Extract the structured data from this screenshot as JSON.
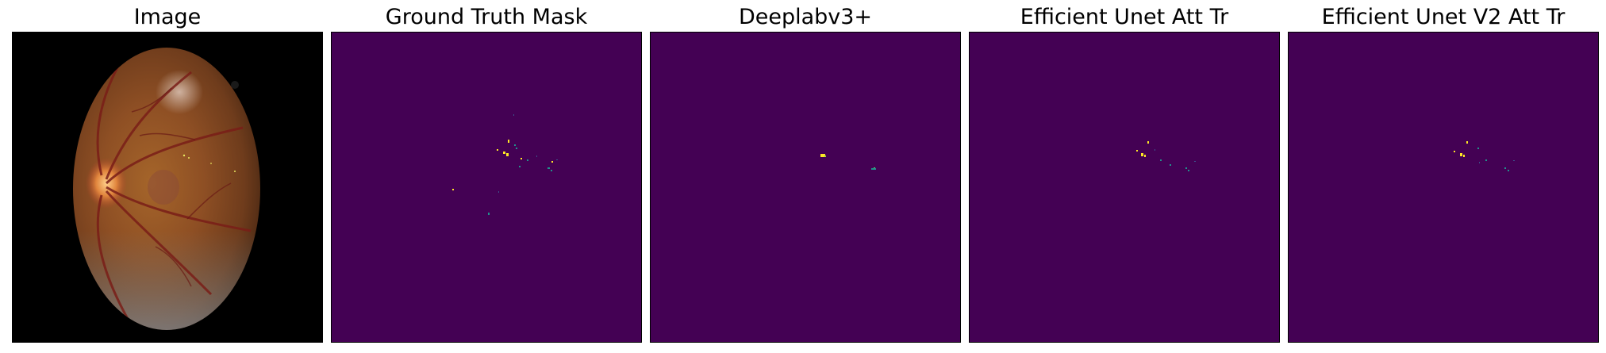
{
  "panels": [
    {
      "title": "Image"
    },
    {
      "title": "Ground Truth Mask"
    },
    {
      "title": "Deeplabv3+"
    },
    {
      "title": "Efficient Unet Att Tr"
    },
    {
      "title": "Efficient Unet V2 Att Tr"
    }
  ],
  "colors": {
    "mask_background": "#440154",
    "mask_foreground": "#fde725",
    "mask_mid": "#21918c",
    "mask_edge": "#3b528b",
    "image_background": "#000000"
  }
}
